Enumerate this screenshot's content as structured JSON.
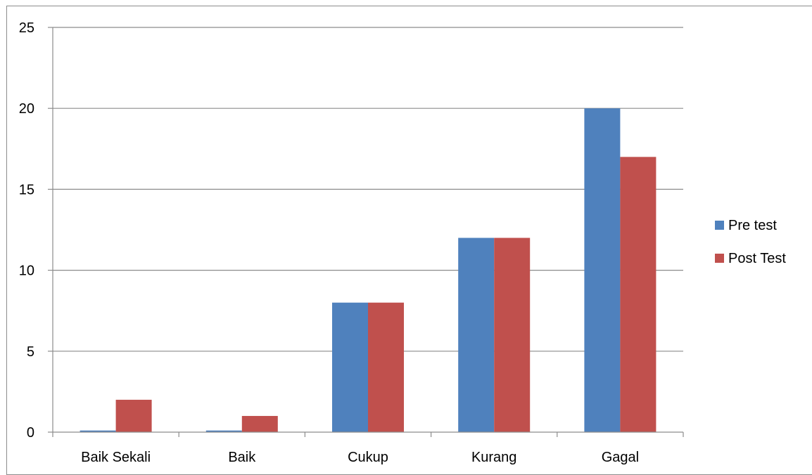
{
  "chart_data": {
    "type": "bar",
    "title": "",
    "xlabel": "",
    "ylabel": "",
    "categories": [
      "Baik Sekali",
      "Baik",
      "Cukup",
      "Kurang",
      "Gagal"
    ],
    "series": [
      {
        "name": "Pre test",
        "values": [
          0.1,
          0.1,
          8,
          12,
          20
        ],
        "color": "#4f81bd"
      },
      {
        "name": "Post Test",
        "values": [
          2,
          1,
          8,
          12,
          17
        ],
        "color": "#c0504d"
      }
    ],
    "ylim": [
      0,
      25
    ],
    "yticks": [
      0,
      5,
      10,
      15,
      20,
      25
    ],
    "grid": true,
    "legend_position": "right"
  }
}
